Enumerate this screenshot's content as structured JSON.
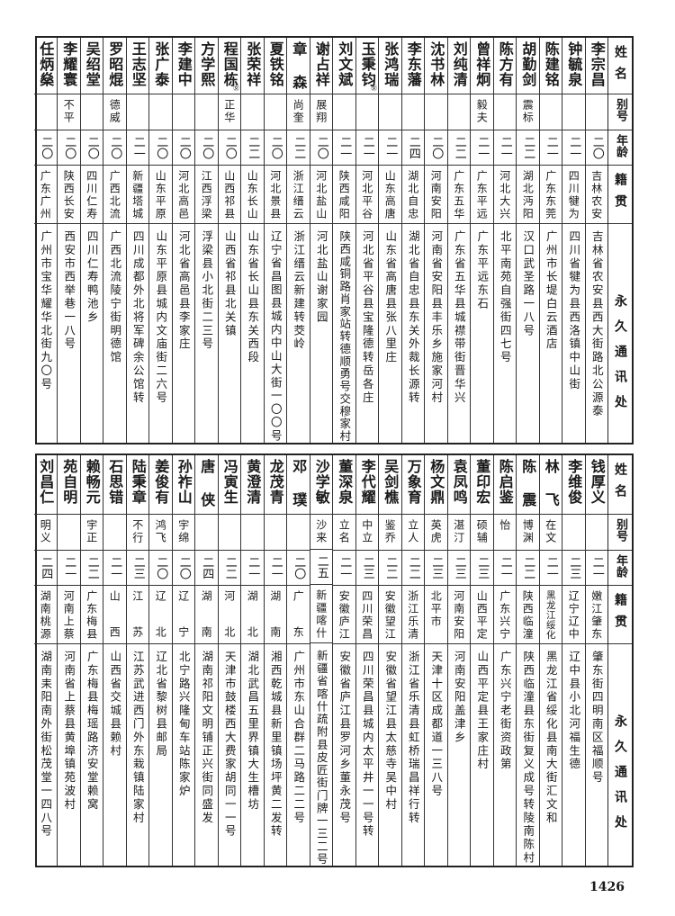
{
  "headers": {
    "name": "姓名",
    "alias": "别号",
    "age": "年龄",
    "native": "籍贯",
    "address": "永久通讯处"
  },
  "top_table": [
    {
      "name": "李宗昌",
      "alias": "",
      "age": "二〇",
      "native": "吉林农安",
      "address": "吉林省农安县西大街路北公源泰"
    },
    {
      "name": "钟毓泉",
      "alias": "",
      "age": "二一",
      "native": "四川犍为",
      "address": "四川省犍为县西洛镇中山街"
    },
    {
      "name": "陈建铭",
      "alias": "",
      "age": "二一",
      "native": "广东东莞",
      "address": "广州市长堤白云酒店"
    },
    {
      "name": "胡勤剑",
      "alias": "震标",
      "age": "二二",
      "native": "湖北沔阳",
      "address": "汉口武圣路一八号"
    },
    {
      "name": "陈方有",
      "alias": "",
      "age": "二一",
      "native": "河北大兴",
      "address": "北平南苑自强街四七号"
    },
    {
      "name": "曾祥炯",
      "alias": "毅夫",
      "age": "二一",
      "native": "广东平远",
      "address": "广东平远东石"
    },
    {
      "name": "刘纯清",
      "alias": "",
      "age": "二二",
      "native": "广东五华",
      "address": "广东省五华县城襟带街晋华兴"
    },
    {
      "name": "沈书林",
      "alias": "",
      "age": "二〇",
      "native": "河南安阳",
      "address": "河南省安阳县丰乐乡施家河村"
    },
    {
      "name": "李东藩",
      "alias": "",
      "age": "二四",
      "native": "湖北自忠",
      "address": "湖北省自忠县东关外裁长源转"
    },
    {
      "name": "张鸿瑞",
      "alias": "",
      "age": "二一",
      "native": "山东高唐",
      "address": "山东省高唐县张八里庄"
    },
    {
      "name": "玉秉钧",
      "mark": "㊛",
      "alias": "",
      "age": "二一",
      "native": "河北平谷",
      "address": "河北省平谷县宝隆德转岳各庄"
    },
    {
      "name": "刘文斌",
      "alias": "",
      "age": "二一",
      "native": "陕西咸阳",
      "address": "陕西咸铜路肖家站转德顺勇号交穆家村"
    },
    {
      "name": "谢占祥",
      "alias": "展翔",
      "age": "二〇",
      "native": "河北盐山",
      "address": "河北盐山谢家园"
    },
    {
      "name": "章森",
      "alias": "尚奎",
      "age": "二二",
      "native": "浙江缙云",
      "address": "浙江缙云新建转茭岭"
    },
    {
      "name": "夏铁铭",
      "alias": "",
      "age": "二〇",
      "native": "河北景县",
      "address": "辽宁省昌图县城内中山大街一〇〇号"
    },
    {
      "name": "张荣祥",
      "alias": "",
      "age": "二二",
      "native": "山东长山",
      "address": "山东省长山县东关西段"
    },
    {
      "name": "程国栋",
      "mark": "㊛",
      "alias": "正华",
      "age": "二〇",
      "native": "山西祁县",
      "address": "山西省祁县北关镇"
    },
    {
      "name": "方学熙",
      "alias": "",
      "age": "二〇",
      "native": "江西浮梁",
      "address": "浮梁县小北街二三号"
    },
    {
      "name": "李建中",
      "alias": "",
      "age": "二〇",
      "native": "河北高邑",
      "address": "河北省高邑县李家庄"
    },
    {
      "name": "张广泰",
      "alias": "",
      "age": "二〇",
      "native": "山东平原",
      "address": "山东平原县城内文庙街二六号"
    },
    {
      "name": "王志坚",
      "alias": "",
      "age": "二一",
      "native": "新疆塔城",
      "address": "四川成都外北将军碑余公馆转"
    },
    {
      "name": "罗昭焜",
      "alias": "德威",
      "age": "二〇",
      "native": "广西北流",
      "address": "广西北流陵宁街明德馆"
    },
    {
      "name": "吴绍堂",
      "alias": "",
      "age": "二〇",
      "native": "四川仁寿",
      "address": "四川仁寿鸭池乡"
    },
    {
      "name": "李耀寰",
      "alias": "不平",
      "age": "二〇",
      "native": "陕西长安",
      "address": "西安市西举巷一八号"
    },
    {
      "name": "任炳燊",
      "alias": "",
      "age": "二〇",
      "native": "广东广州",
      "address": "广州市宝华耀华北街九〇号"
    }
  ],
  "bottom_table": [
    {
      "name": "钱厚义",
      "alias": "",
      "age": "二一",
      "native": "嫩江肇东",
      "address": "肇东街四明南区福顺号"
    },
    {
      "name": "李维俊",
      "alias": "",
      "age": "二三",
      "native": "辽宁辽中",
      "address": "辽中县小北河福生德"
    },
    {
      "name": "林飞",
      "alias": "在文",
      "age": "二一",
      "native": "黑龙江绥化",
      "address": "黑龙江省绥化县南大街汇文和"
    },
    {
      "name": "陈震",
      "alias": "博渊",
      "age": "二二",
      "native": "陕西临潼",
      "address": "陕西临潼县东街复义成号转陵南陈村"
    },
    {
      "name": "陈启鉴",
      "alias": "怡",
      "age": "二一",
      "native": "广东兴宁",
      "address": "广东兴宁老街资政第"
    },
    {
      "name": "董印宏",
      "alias": "硕辅",
      "age": "二三",
      "native": "山西平定",
      "address": "山西平定县王家庄村"
    },
    {
      "name": "袁凤鸣",
      "alias": "湛汀",
      "age": "二三",
      "native": "河南安阳",
      "address": "河南安阳盖津乡"
    },
    {
      "name": "杨文鼎",
      "alias": "英虎",
      "age": "二三",
      "native": "北平市",
      "address": "天津十区成都道一三八号"
    },
    {
      "name": "万象育",
      "alias": "立人",
      "age": "二二",
      "native": "浙江乐清",
      "address": "浙江省乐清县虹桥瑞昌祥行转"
    },
    {
      "name": "吴剑樵",
      "alias": "鉴乔",
      "age": "二二",
      "native": "安徽望江",
      "address": "安徽省望江县太慈寺吴中村"
    },
    {
      "name": "李代耀",
      "alias": "中立",
      "age": "二三",
      "native": "四川荣昌",
      "address": "四川荣昌县城内太平井一一号转"
    },
    {
      "name": "董深泉",
      "alias": "立名",
      "age": "二一",
      "native": "安徽庐江",
      "address": "安徽省庐江县罗河乡董永茂号"
    },
    {
      "name": "沙学敏",
      "alias": "沙来",
      "age": "二五",
      "native": "新疆喀什",
      "address": "新疆省喀什疏附县皮匠街门牌一三二号"
    },
    {
      "name": "邓璞",
      "alias": "",
      "age": "二〇",
      "native": "广东",
      "address": "广州市东山合群二马路二二号"
    },
    {
      "name": "龙茂青",
      "alias": "",
      "age": "二一",
      "native": "湖南",
      "address": "湘西乾城县新里镇场坪黄二发转"
    },
    {
      "name": "黄澄清",
      "alias": "",
      "age": "二一",
      "native": "湖北",
      "address": "湖北武昌五里界镇大生槽坊"
    },
    {
      "name": "冯寅生",
      "alias": "",
      "age": "二二",
      "native": "河北",
      "address": "天津市鼓楼西大费家胡同一一号"
    },
    {
      "name": "唐侠",
      "alias": "",
      "age": "二四",
      "native": "湖南",
      "address": "湖南祁阳文明铺正兴街同盛发"
    },
    {
      "name": "孙祚山",
      "alias": "宇绵",
      "age": "二〇",
      "native": "辽宁",
      "address": "北宁路兴隆甸车站陈家炉"
    },
    {
      "name": "姜俊有",
      "alias": "鸿飞",
      "age": "二〇",
      "native": "辽北",
      "address": "辽北省黎树县邮局"
    },
    {
      "name": "陆秉章",
      "alias": "不行",
      "age": "二三",
      "native": "江苏",
      "address": "江苏武进西门外东栽镇陆家村"
    },
    {
      "name": "石思错",
      "alias": "",
      "age": "二一",
      "native": "山西",
      "address": "山西省交城县赖村"
    },
    {
      "name": "赖畅元",
      "alias": "宇正",
      "age": "二二",
      "native": "广东梅县",
      "address": "广东梅县梅瑶路济安堂赖窝"
    },
    {
      "name": "苑自明",
      "alias": "",
      "age": "二一",
      "native": "河南上蔡",
      "address": "河南省上蔡县黄埠镇苑波村"
    },
    {
      "name": "刘昌仁",
      "alias": "明义",
      "age": "二四",
      "native": "湖南桃源",
      "address": "湖南耒阳南外街松茂堂一四八号"
    }
  ],
  "page_number": "1426"
}
